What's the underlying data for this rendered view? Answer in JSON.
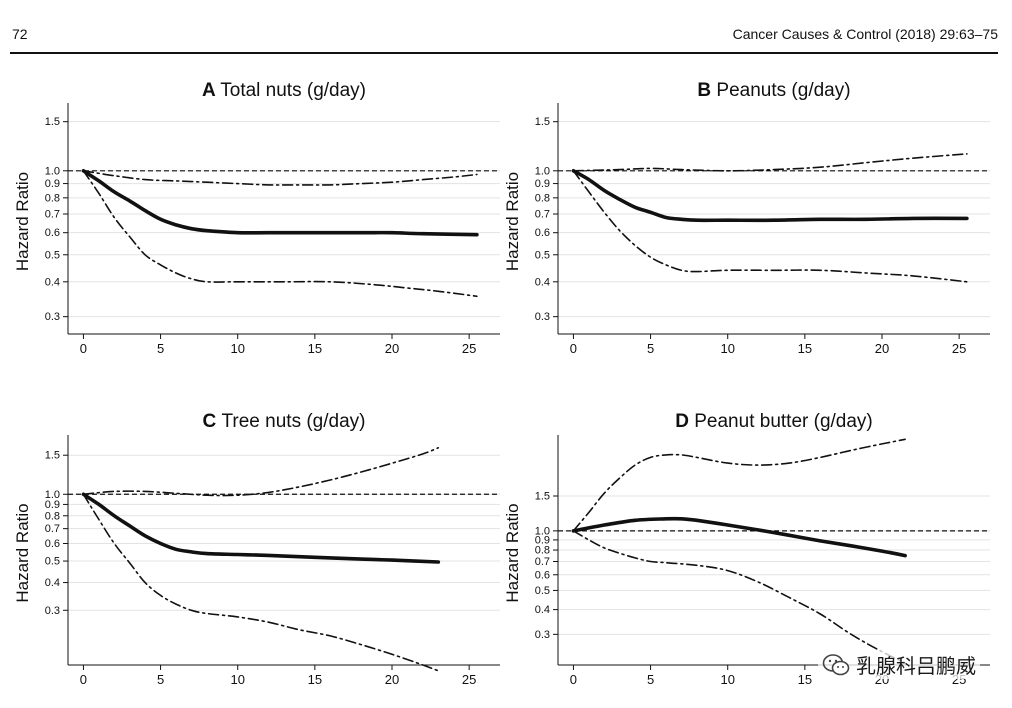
{
  "header": {
    "page_number": "72",
    "journal_ref": "Cancer Causes & Control (2018) 29:63–75"
  },
  "watermark": {
    "text": "乳腺科吕鹏威",
    "icon": "wechat-icon"
  },
  "chart_data": [
    {
      "type": "line",
      "panel_letter": "A",
      "title": "Total nuts (g/day)",
      "ylabel": "Hazard Ratio",
      "y_scale": "log",
      "ylim": [
        0.26,
        1.75
      ],
      "xlim": [
        -1,
        27
      ],
      "x_ticks": [
        0,
        5,
        10,
        15,
        20,
        25
      ],
      "y_ticks": [
        0.3,
        0.4,
        0.5,
        0.6,
        0.7,
        0.8,
        0.9,
        1.0,
        1.5
      ],
      "y_tick_labels": [
        "0.3",
        "0.4",
        "0.5",
        "0.6",
        "0.7",
        "0.8",
        "0.9",
        "1.0",
        "1.5"
      ],
      "reference_line": 1.0,
      "grid": true,
      "series": [
        {
          "style": "solid",
          "x": [
            0,
            1,
            2,
            3,
            4,
            5,
            6,
            7,
            8,
            10,
            12,
            15,
            18,
            20,
            22,
            25.5
          ],
          "y": [
            1.0,
            0.92,
            0.84,
            0.78,
            0.72,
            0.67,
            0.64,
            0.62,
            0.61,
            0.6,
            0.6,
            0.6,
            0.6,
            0.6,
            0.595,
            0.59
          ]
        },
        {
          "style": "dashdot",
          "x": [
            0,
            2,
            4,
            6,
            8,
            10,
            12,
            14,
            16,
            18,
            20,
            22,
            24,
            25.5
          ],
          "y": [
            1.0,
            0.96,
            0.93,
            0.92,
            0.91,
            0.9,
            0.89,
            0.89,
            0.89,
            0.9,
            0.91,
            0.93,
            0.95,
            0.97
          ]
        },
        {
          "style": "dashdot",
          "x": [
            0,
            1,
            2,
            3,
            4,
            5,
            6,
            7,
            8,
            10,
            13,
            16,
            19,
            21,
            23,
            25.5
          ],
          "y": [
            1.0,
            0.83,
            0.68,
            0.58,
            0.5,
            0.46,
            0.43,
            0.41,
            0.4,
            0.4,
            0.4,
            0.4,
            0.39,
            0.38,
            0.37,
            0.355
          ]
        }
      ]
    },
    {
      "type": "line",
      "panel_letter": "B",
      "title": "Peanuts (g/day)",
      "ylabel": "Hazard Ratio",
      "y_scale": "log",
      "ylim": [
        0.26,
        1.75
      ],
      "xlim": [
        -1,
        27
      ],
      "x_ticks": [
        0,
        5,
        10,
        15,
        20,
        25
      ],
      "y_ticks": [
        0.3,
        0.4,
        0.5,
        0.6,
        0.7,
        0.8,
        0.9,
        1.0,
        1.5
      ],
      "y_tick_labels": [
        "0.3",
        "0.4",
        "0.5",
        "0.6",
        "0.7",
        "0.8",
        "0.9",
        "1.0",
        "1.5"
      ],
      "reference_line": 1.0,
      "grid": true,
      "series": [
        {
          "style": "solid",
          "x": [
            0,
            1,
            2,
            3,
            4,
            5,
            6,
            7,
            8,
            10,
            13,
            16,
            19,
            22,
            25.5
          ],
          "y": [
            1.0,
            0.93,
            0.85,
            0.79,
            0.74,
            0.71,
            0.68,
            0.67,
            0.665,
            0.665,
            0.665,
            0.67,
            0.67,
            0.675,
            0.675
          ]
        },
        {
          "style": "dashdot",
          "x": [
            0,
            3,
            5,
            7,
            10,
            13,
            16,
            19,
            22,
            25.5
          ],
          "y": [
            1.0,
            1.01,
            1.02,
            1.01,
            1.0,
            1.01,
            1.03,
            1.07,
            1.11,
            1.15
          ]
        },
        {
          "style": "dashdot",
          "x": [
            0,
            1,
            2,
            3,
            4,
            5,
            6,
            7,
            8,
            10,
            13,
            16,
            19,
            22,
            25.5
          ],
          "y": [
            1.0,
            0.84,
            0.71,
            0.61,
            0.54,
            0.49,
            0.46,
            0.44,
            0.435,
            0.44,
            0.44,
            0.44,
            0.43,
            0.42,
            0.4
          ]
        }
      ]
    },
    {
      "type": "line",
      "panel_letter": "C",
      "title": "Tree nuts (g/day)",
      "ylabel": "Hazard Ratio",
      "y_scale": "log",
      "ylim": [
        0.17,
        1.85
      ],
      "xlim": [
        -1,
        27
      ],
      "x_ticks": [
        0,
        5,
        10,
        15,
        20,
        25
      ],
      "y_ticks": [
        0.3,
        0.4,
        0.5,
        0.6,
        0.7,
        0.8,
        0.9,
        1.0,
        1.5
      ],
      "y_tick_labels": [
        "0.3",
        "0.4",
        "0.5",
        "0.6",
        "0.7",
        "0.8",
        "0.9",
        "1.0",
        "1.5"
      ],
      "reference_line": 1.0,
      "grid": true,
      "series": [
        {
          "style": "solid",
          "x": [
            0,
            1,
            2,
            3,
            4,
            5,
            6,
            7,
            8,
            10,
            12,
            15,
            18,
            20,
            23
          ],
          "y": [
            1.0,
            0.9,
            0.8,
            0.72,
            0.65,
            0.6,
            0.565,
            0.55,
            0.54,
            0.535,
            0.53,
            0.52,
            0.51,
            0.505,
            0.495
          ]
        },
        {
          "style": "dashdot",
          "x": [
            0,
            2,
            4,
            6,
            8,
            10,
            12,
            14,
            16,
            18,
            20,
            22,
            23
          ],
          "y": [
            1.0,
            1.03,
            1.03,
            1.01,
            0.99,
            0.99,
            1.02,
            1.08,
            1.16,
            1.26,
            1.38,
            1.52,
            1.62
          ]
        },
        {
          "style": "dashdot",
          "x": [
            0,
            1,
            2,
            3,
            4,
            5,
            6,
            7,
            8,
            10,
            12,
            14,
            16,
            18,
            20,
            22,
            23
          ],
          "y": [
            1.0,
            0.77,
            0.6,
            0.49,
            0.4,
            0.35,
            0.32,
            0.3,
            0.29,
            0.28,
            0.265,
            0.245,
            0.23,
            0.21,
            0.19,
            0.17,
            0.16
          ]
        }
      ]
    },
    {
      "type": "line",
      "panel_letter": "D",
      "title": "Peanut butter (g/day)",
      "ylabel": "Hazard Ratio",
      "y_scale": "log",
      "ylim": [
        0.21,
        3.05
      ],
      "xlim": [
        -1,
        27
      ],
      "x_ticks": [
        0,
        5,
        10,
        15,
        20,
        25
      ],
      "y_ticks": [
        0.3,
        0.4,
        0.5,
        0.6,
        0.7,
        0.8,
        0.9,
        1.0,
        1.5
      ],
      "y_tick_labels": [
        "0.3",
        "0.4",
        "0.5",
        "0.6",
        "0.7",
        "0.8",
        "0.9",
        "1.0",
        "1.5"
      ],
      "reference_line": 1.0,
      "grid": true,
      "series": [
        {
          "style": "solid",
          "x": [
            0,
            2,
            4,
            6,
            7,
            8,
            10,
            12,
            14,
            16,
            18,
            20,
            21.5
          ],
          "y": [
            1.0,
            1.07,
            1.13,
            1.15,
            1.15,
            1.13,
            1.07,
            1.01,
            0.95,
            0.89,
            0.84,
            0.79,
            0.75
          ]
        },
        {
          "style": "dashdot",
          "x": [
            0,
            1,
            2,
            3,
            4,
            5,
            6,
            7,
            8,
            10,
            12,
            14,
            16,
            18,
            20,
            21.5
          ],
          "y": [
            1.0,
            1.24,
            1.55,
            1.85,
            2.15,
            2.35,
            2.42,
            2.42,
            2.35,
            2.2,
            2.15,
            2.2,
            2.35,
            2.55,
            2.75,
            2.9
          ]
        },
        {
          "style": "dashdot",
          "x": [
            0,
            1,
            2,
            3,
            4,
            5,
            6,
            8,
            10,
            12,
            14,
            16,
            18,
            20,
            21.5
          ],
          "y": [
            1.0,
            0.9,
            0.82,
            0.77,
            0.73,
            0.7,
            0.69,
            0.67,
            0.63,
            0.55,
            0.46,
            0.38,
            0.3,
            0.245,
            0.215
          ]
        }
      ]
    }
  ]
}
